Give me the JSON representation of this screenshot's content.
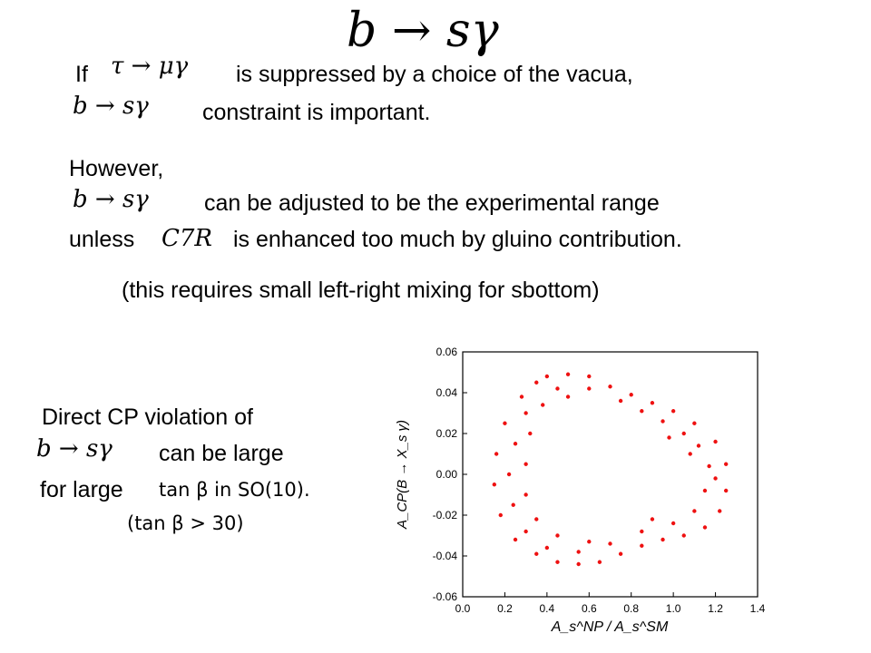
{
  "slide": {
    "title_math": "b → sγ",
    "line1": {
      "prefix": "If",
      "math": "τ → μγ",
      "suffix": "is suppressed by a choice of the vacua,"
    },
    "line2": {
      "math": "b → sγ",
      "suffix": "constraint is important."
    },
    "however": "However,",
    "line3": {
      "math": "b → sγ",
      "suffix": "can be adjusted to be the experimental  range"
    },
    "line4": {
      "prefix": "unless",
      "math": "C7R",
      "suffix": "is enhanced too much by gluino contribution."
    },
    "note": "(this requires small left-right mixing for sbottom)",
    "cp": {
      "line1": "Direct CP violation  of",
      "math": "b → sγ",
      "line2_suffix": "can be large",
      "line3_prefix": "for large",
      "tanbeta_in": "tan β in SO(10).",
      "tanbeta_cond": "(tan β > 30)"
    }
  },
  "chart_data": {
    "type": "scatter",
    "xlabel": "A_s^NP / A_s^SM",
    "ylabel": "A_CP(B → X_s γ)",
    "xlim": [
      0.0,
      1.4
    ],
    "ylim": [
      -0.06,
      0.06
    ],
    "x_ticks": [
      "0.0",
      "0.2",
      "0.4",
      "0.6",
      "0.8",
      "1.0",
      "1.2",
      "1.4"
    ],
    "y_ticks": [
      "-0.06",
      "-0.04",
      "-0.02",
      "0.00",
      "0.02",
      "0.04",
      "0.06"
    ],
    "point_color": "#ee1111",
    "points": [
      [
        0.4,
        0.048
      ],
      [
        0.5,
        0.049
      ],
      [
        0.6,
        0.048
      ],
      [
        0.7,
        0.043
      ],
      [
        0.8,
        0.039
      ],
      [
        0.9,
        0.035
      ],
      [
        1.0,
        0.031
      ],
      [
        1.1,
        0.025
      ],
      [
        1.2,
        0.016
      ],
      [
        1.25,
        0.005
      ],
      [
        1.25,
        -0.008
      ],
      [
        1.22,
        -0.018
      ],
      [
        1.15,
        -0.026
      ],
      [
        1.05,
        -0.03
      ],
      [
        0.95,
        -0.032
      ],
      [
        0.85,
        -0.035
      ],
      [
        0.75,
        -0.039
      ],
      [
        0.65,
        -0.043
      ],
      [
        0.55,
        -0.044
      ],
      [
        0.45,
        -0.043
      ],
      [
        0.35,
        -0.039
      ],
      [
        0.25,
        -0.032
      ],
      [
        0.18,
        -0.02
      ],
      [
        0.15,
        -0.005
      ],
      [
        0.16,
        0.01
      ],
      [
        0.2,
        0.025
      ],
      [
        0.28,
        0.038
      ],
      [
        0.35,
        0.045
      ],
      [
        0.3,
        0.03
      ],
      [
        0.25,
        0.015
      ],
      [
        0.22,
        0.0
      ],
      [
        0.24,
        -0.015
      ],
      [
        0.3,
        -0.028
      ],
      [
        0.4,
        -0.036
      ],
      [
        0.55,
        -0.038
      ],
      [
        0.7,
        -0.034
      ],
      [
        0.85,
        -0.028
      ],
      [
        1.0,
        -0.024
      ],
      [
        1.1,
        -0.018
      ],
      [
        1.15,
        -0.008
      ],
      [
        1.17,
        0.004
      ],
      [
        1.12,
        0.014
      ],
      [
        1.05,
        0.02
      ],
      [
        0.95,
        0.026
      ],
      [
        0.85,
        0.031
      ],
      [
        0.75,
        0.036
      ],
      [
        0.6,
        0.042
      ],
      [
        0.45,
        0.042
      ],
      [
        0.38,
        0.034
      ],
      [
        0.32,
        0.02
      ],
      [
        0.3,
        0.005
      ],
      [
        0.3,
        -0.01
      ],
      [
        0.35,
        -0.022
      ],
      [
        0.45,
        -0.03
      ],
      [
        0.6,
        -0.033
      ],
      [
        1.2,
        -0.002
      ],
      [
        1.08,
        0.01
      ],
      [
        0.98,
        0.018
      ],
      [
        0.9,
        -0.022
      ],
      [
        0.5,
        0.038
      ]
    ]
  }
}
